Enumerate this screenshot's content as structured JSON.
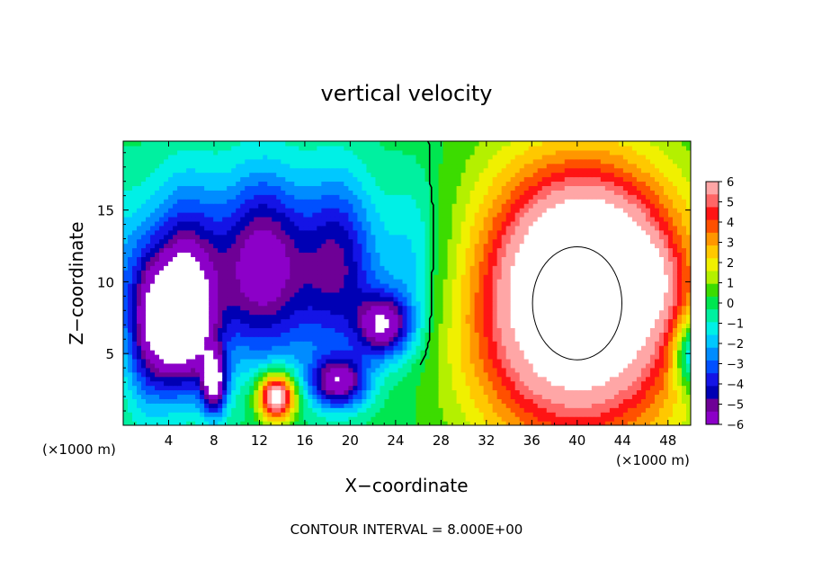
{
  "chart_data": {
    "type": "heatmap",
    "title": "vertical velocity",
    "xlabel": "X−coordinate",
    "ylabel": "Z−coordinate",
    "x_unit_left": "(×1000 m)",
    "x_unit_right": "(×1000 m)",
    "footer": "CONTOUR INTERVAL = 8.000E+00",
    "xlim": [
      0,
      50
    ],
    "ylim": [
      0,
      19.8
    ],
    "x_ticks": [
      {
        "value": 4,
        "label": "4"
      },
      {
        "value": 8,
        "label": "8"
      },
      {
        "value": 12,
        "label": "12"
      },
      {
        "value": 16,
        "label": "16"
      },
      {
        "value": 20,
        "label": "20"
      },
      {
        "value": 24,
        "label": "24"
      },
      {
        "value": 28,
        "label": "28"
      },
      {
        "value": 32,
        "label": "32"
      },
      {
        "value": 36,
        "label": "36"
      },
      {
        "value": 40,
        "label": "40"
      },
      {
        "value": 44,
        "label": "44"
      },
      {
        "value": 48,
        "label": "48"
      }
    ],
    "y_ticks": [
      {
        "value": 5,
        "label": "5"
      },
      {
        "value": 10,
        "label": "10"
      },
      {
        "value": 15,
        "label": "15"
      }
    ],
    "colorbar": {
      "min": -6,
      "max": 6,
      "labels": [
        "6",
        "5",
        "4",
        "3",
        "2",
        "1",
        "0",
        "−1",
        "−2",
        "−3",
        "−4",
        "−5",
        "−6"
      ],
      "colors": [
        "#ffa6a6",
        "#ff6666",
        "#ff1414",
        "#ff5000",
        "#ff9600",
        "#ffc800",
        "#f0f000",
        "#b4f000",
        "#3cdc00",
        "#00e650",
        "#00f0a0",
        "#00f0e6",
        "#00c8ff",
        "#008cff",
        "#0050ff",
        "#1414e6",
        "#0000b4",
        "#6e0096",
        "#8c00c8"
      ]
    },
    "features": [
      {
        "kind": "updraft",
        "cx": 40,
        "cy": 8.5,
        "rx": 9.5,
        "ry": 9.5,
        "amp": 9.5
      },
      {
        "kind": "updraft",
        "cx": 41.5,
        "cy": 11.5,
        "rx": 5.5,
        "ry": 5,
        "amp": 3
      },
      {
        "kind": "updraft",
        "cx": 13.5,
        "cy": 2,
        "rx": 1.6,
        "ry": 1.6,
        "amp": 8
      },
      {
        "kind": "updraft",
        "cx": 46,
        "cy": 10,
        "rx": 2.5,
        "ry": 2.5,
        "amp": 2
      },
      {
        "kind": "downdraft",
        "cx": 13,
        "cy": 11,
        "rx": 12,
        "ry": 6.5,
        "amp": -5.8
      },
      {
        "kind": "downdraft",
        "cx": 5,
        "cy": 7,
        "rx": 2.8,
        "ry": 4.5,
        "amp": -7
      },
      {
        "kind": "downdraft",
        "cx": 8,
        "cy": 3,
        "rx": 1.1,
        "ry": 2.2,
        "amp": -6
      },
      {
        "kind": "downdraft",
        "cx": 23,
        "cy": 7,
        "rx": 2.4,
        "ry": 2.2,
        "amp": -5.5
      },
      {
        "kind": "downdraft",
        "cx": 19,
        "cy": 3,
        "rx": 2.5,
        "ry": 1.8,
        "amp": -5.5
      },
      {
        "kind": "downdraft",
        "cx": 2,
        "cy": 7,
        "rx": 2,
        "ry": 6,
        "amp": -3
      },
      {
        "kind": "downdraft",
        "cx": 50,
        "cy": 5,
        "rx": 1.5,
        "ry": 2.5,
        "amp": -4
      }
    ]
  }
}
